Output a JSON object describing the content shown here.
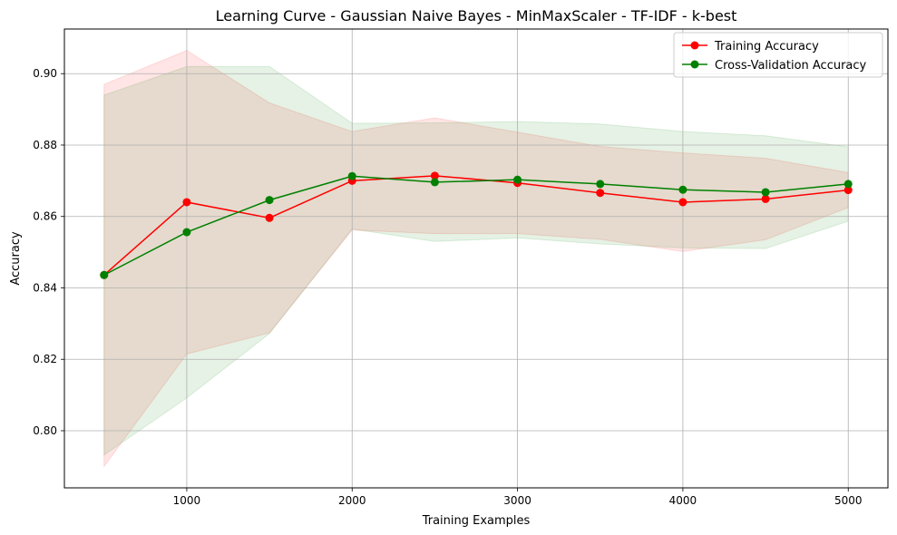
{
  "chart_data": {
    "type": "line",
    "title": "Learning Curve - Gaussian Naive Bayes - MinMaxScaler - TF-IDF - k-best",
    "xlabel": "Training Examples",
    "ylabel": "Accuracy",
    "xlim": [
      260,
      5240
    ],
    "ylim": [
      0.784,
      0.9125
    ],
    "x_ticks": [
      1000,
      2000,
      3000,
      4000,
      5000
    ],
    "y_ticks": [
      0.8,
      0.82,
      0.84,
      0.86,
      0.88,
      0.9
    ],
    "x_tick_labels": [
      "1000",
      "2000",
      "3000",
      "4000",
      "5000"
    ],
    "y_tick_labels": [
      "0.80",
      "0.82",
      "0.84",
      "0.86",
      "0.88",
      "0.90"
    ],
    "grid": true,
    "legend_position": "top-right",
    "x": [
      500,
      1000,
      1500,
      2000,
      2500,
      3000,
      3500,
      4000,
      4500,
      5000
    ],
    "series": [
      {
        "name": "Training Accuracy",
        "color": "#ff0000",
        "band_color": "#ff0000",
        "marker": "circle",
        "values": [
          0.8436,
          0.864,
          0.8596,
          0.87,
          0.8714,
          0.8694,
          0.8666,
          0.864,
          0.8649,
          0.8674
        ],
        "upper": [
          0.897,
          0.9065,
          0.8918,
          0.8838,
          0.8876,
          0.8836,
          0.8796,
          0.8778,
          0.8763,
          0.8723
        ],
        "lower": [
          0.79,
          0.8215,
          0.8274,
          0.8562,
          0.8552,
          0.8552,
          0.8536,
          0.8502,
          0.8535,
          0.8625
        ]
      },
      {
        "name": "Cross-Validation Accuracy",
        "color": "#008000",
        "band_color": "#008000",
        "marker": "circle",
        "values": [
          0.8436,
          0.8556,
          0.8646,
          0.8713,
          0.8696,
          0.8703,
          0.8691,
          0.8675,
          0.8668,
          0.8691
        ],
        "upper": [
          0.894,
          0.902,
          0.902,
          0.8861,
          0.8862,
          0.8866,
          0.8859,
          0.8838,
          0.8826,
          0.8795
        ],
        "lower": [
          0.7932,
          0.8092,
          0.8272,
          0.8565,
          0.853,
          0.854,
          0.8523,
          0.8512,
          0.851,
          0.8587
        ]
      }
    ]
  }
}
